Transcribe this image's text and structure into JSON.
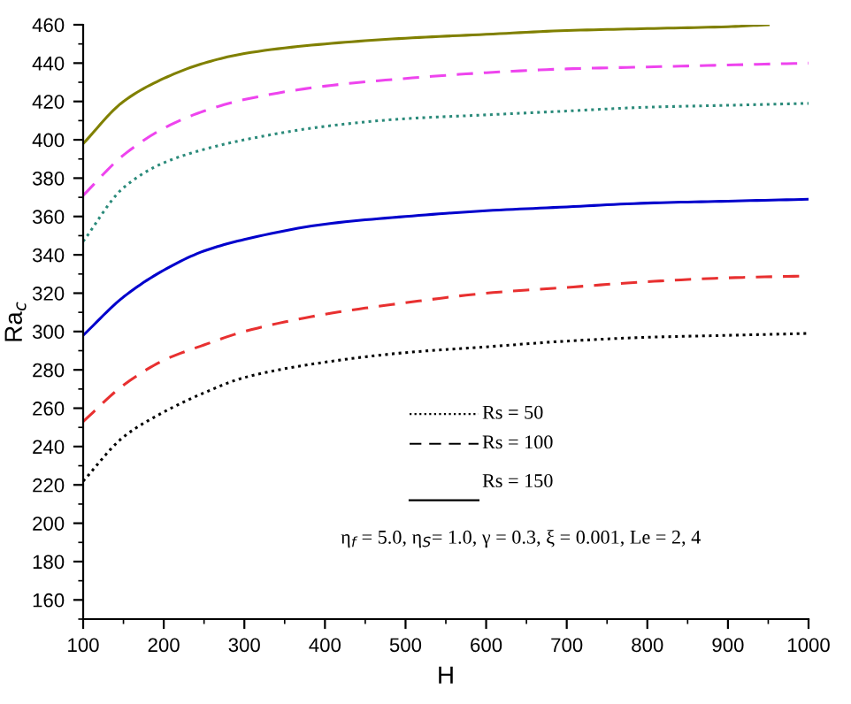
{
  "chart_data": {
    "type": "line",
    "xlabel": "H",
    "ylabel": "Ra$_{c}$",
    "xlim": [
      100,
      1000
    ],
    "ylim": [
      150,
      460
    ],
    "xticks": [
      100,
      200,
      300,
      400,
      500,
      600,
      700,
      800,
      900,
      1000
    ],
    "yticks": [
      160,
      180,
      200,
      220,
      240,
      260,
      280,
      300,
      320,
      340,
      360,
      380,
      400,
      420,
      440,
      460
    ],
    "grid": false,
    "legend": false,
    "marker": "none",
    "series": [
      {
        "color": "#000000",
        "line_style": "dotted",
        "x": [
          100,
          150,
          200,
          250,
          300,
          400,
          500,
          600,
          700,
          800,
          900,
          1000
        ],
        "values": [
          222,
          245,
          258,
          268,
          276,
          284,
          289,
          292,
          295,
          297,
          298,
          299
        ]
      },
      {
        "color": "#e83030",
        "line_style": "dashed",
        "x": [
          100,
          150,
          200,
          250,
          300,
          400,
          500,
          600,
          700,
          800,
          900,
          1000
        ],
        "values": [
          253,
          272,
          285,
          293,
          300,
          309,
          315,
          320,
          323,
          326,
          328,
          329
        ]
      },
      {
        "color": "#0000cc",
        "line_style": "solid",
        "x": [
          100,
          150,
          200,
          250,
          300,
          400,
          500,
          600,
          700,
          800,
          900,
          1000
        ],
        "values": [
          298,
          318,
          332,
          342,
          348,
          356,
          360,
          363,
          365,
          367,
          368,
          369
        ]
      },
      {
        "color": "#2a8a7a",
        "line_style": "dotted",
        "x": [
          100,
          150,
          200,
          250,
          300,
          400,
          500,
          600,
          700,
          800,
          900,
          1000
        ],
        "values": [
          347,
          375,
          388,
          395,
          400,
          407,
          411,
          413,
          415,
          417,
          418,
          419
        ]
      },
      {
        "color": "#ee44ee",
        "line_style": "dashed",
        "x": [
          100,
          150,
          200,
          250,
          300,
          400,
          500,
          600,
          700,
          800,
          900,
          1000
        ],
        "values": [
          371,
          392,
          406,
          415,
          421,
          428,
          432,
          435,
          437,
          438,
          439,
          440
        ]
      },
      {
        "color": "#808000",
        "line_style": "solid",
        "x": [
          100,
          150,
          200,
          250,
          300,
          400,
          500,
          600,
          700,
          800,
          900,
          950
        ],
        "values": [
          398,
          420,
          432,
          440,
          445,
          450,
          453,
          455,
          457,
          458,
          459,
          460
        ]
      }
    ],
    "annotations": [
      "Rs = 50",
      "Rs = 100",
      "Rs = 150",
      "η$_{f}$ = 5.0, η$_{S}$= 1.0, γ = 0.3, ξ = 0.001, Le = 2, 4"
    ]
  }
}
